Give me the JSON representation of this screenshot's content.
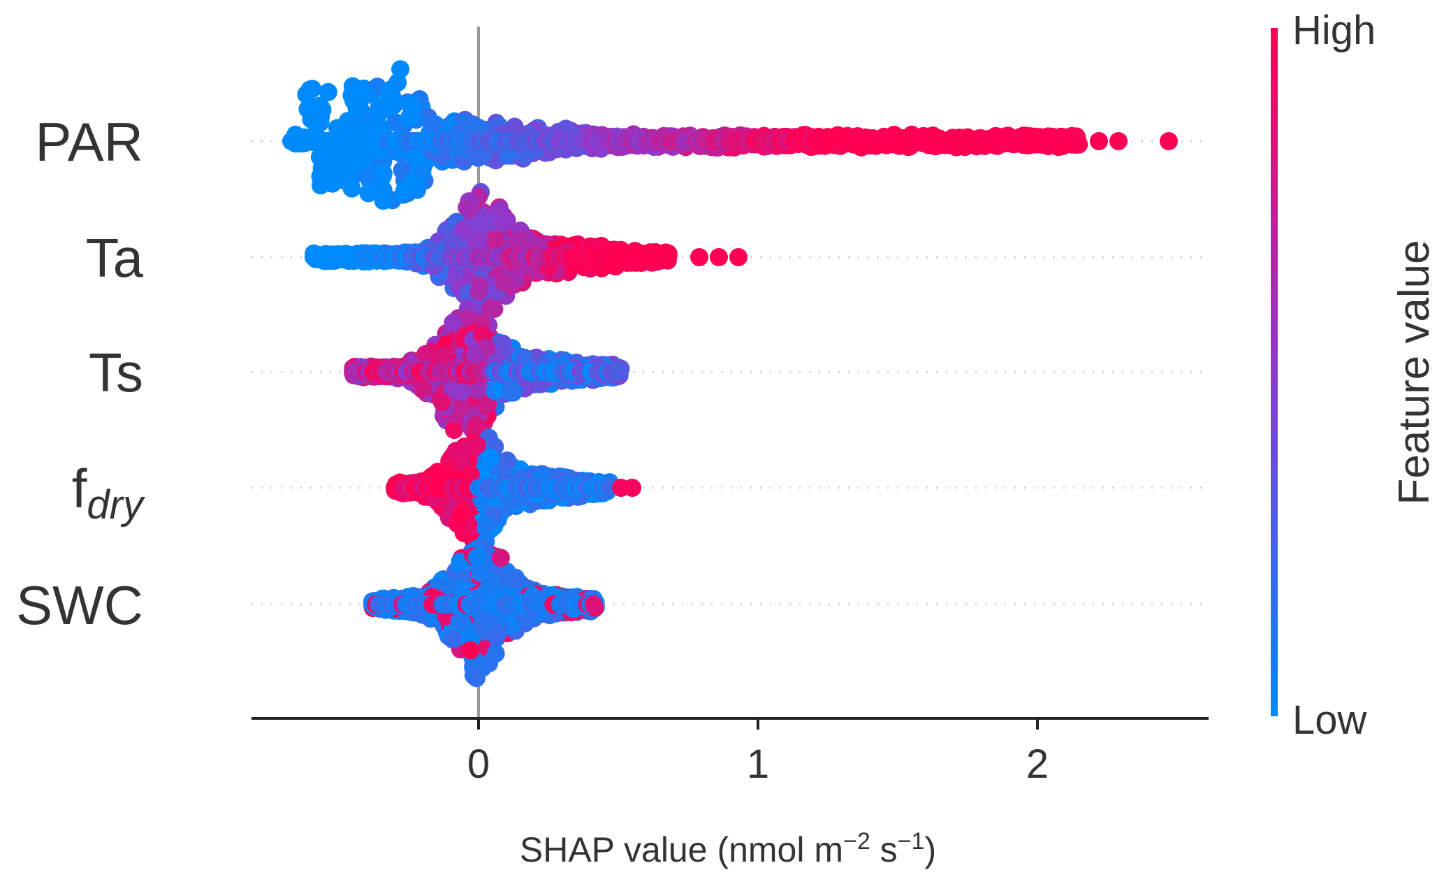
{
  "chart_data": {
    "type": "scatter",
    "subtype": "shap-beeswarm",
    "title": "",
    "xlabel": "SHAP value (nmol m^-2 s^-1)",
    "xlabel_parts": {
      "main": "SHAP value (nmol m",
      "sup1": "−2",
      "mid": " s",
      "sup2": "−1",
      "end": ")"
    },
    "xlim": [
      -0.82,
      2.62
    ],
    "xticks": [
      0,
      1,
      2
    ],
    "xtick_labels": [
      "0",
      "1",
      "2"
    ],
    "zero_line": 0,
    "grid": false,
    "colormap": {
      "low": "#008afb",
      "mid": "#8c3ad0",
      "high": "#ff0052"
    },
    "colorbar": {
      "title": "Feature value",
      "high_label": "High",
      "low_label": "Low"
    },
    "features": [
      {
        "name": "PAR",
        "main": "PAR",
        "sub": "",
        "min": -0.67,
        "max": 2.47,
        "bulk_max": 2.15,
        "outliers": [
          2.22,
          2.29,
          2.47
        ]
      },
      {
        "name": "Ta",
        "main": "Ta",
        "sub": "",
        "min": -0.59,
        "max": 0.93,
        "bulk_max": 0.68,
        "outliers": [
          0.79,
          0.86,
          0.93
        ]
      },
      {
        "name": "Ts",
        "main": "Ts",
        "sub": "",
        "min": -0.45,
        "max": 0.51,
        "bulk_max": 0.51,
        "outliers": []
      },
      {
        "name": "fdry",
        "main": "f",
        "sub": "dry",
        "min": -0.3,
        "max": 0.55,
        "bulk_max": 0.47,
        "outliers": [
          0.51,
          0.55
        ]
      },
      {
        "name": "SWC",
        "main": "SWC",
        "sub": "",
        "min": -0.38,
        "max": 0.42,
        "bulk_max": 0.42,
        "outliers": []
      }
    ]
  }
}
